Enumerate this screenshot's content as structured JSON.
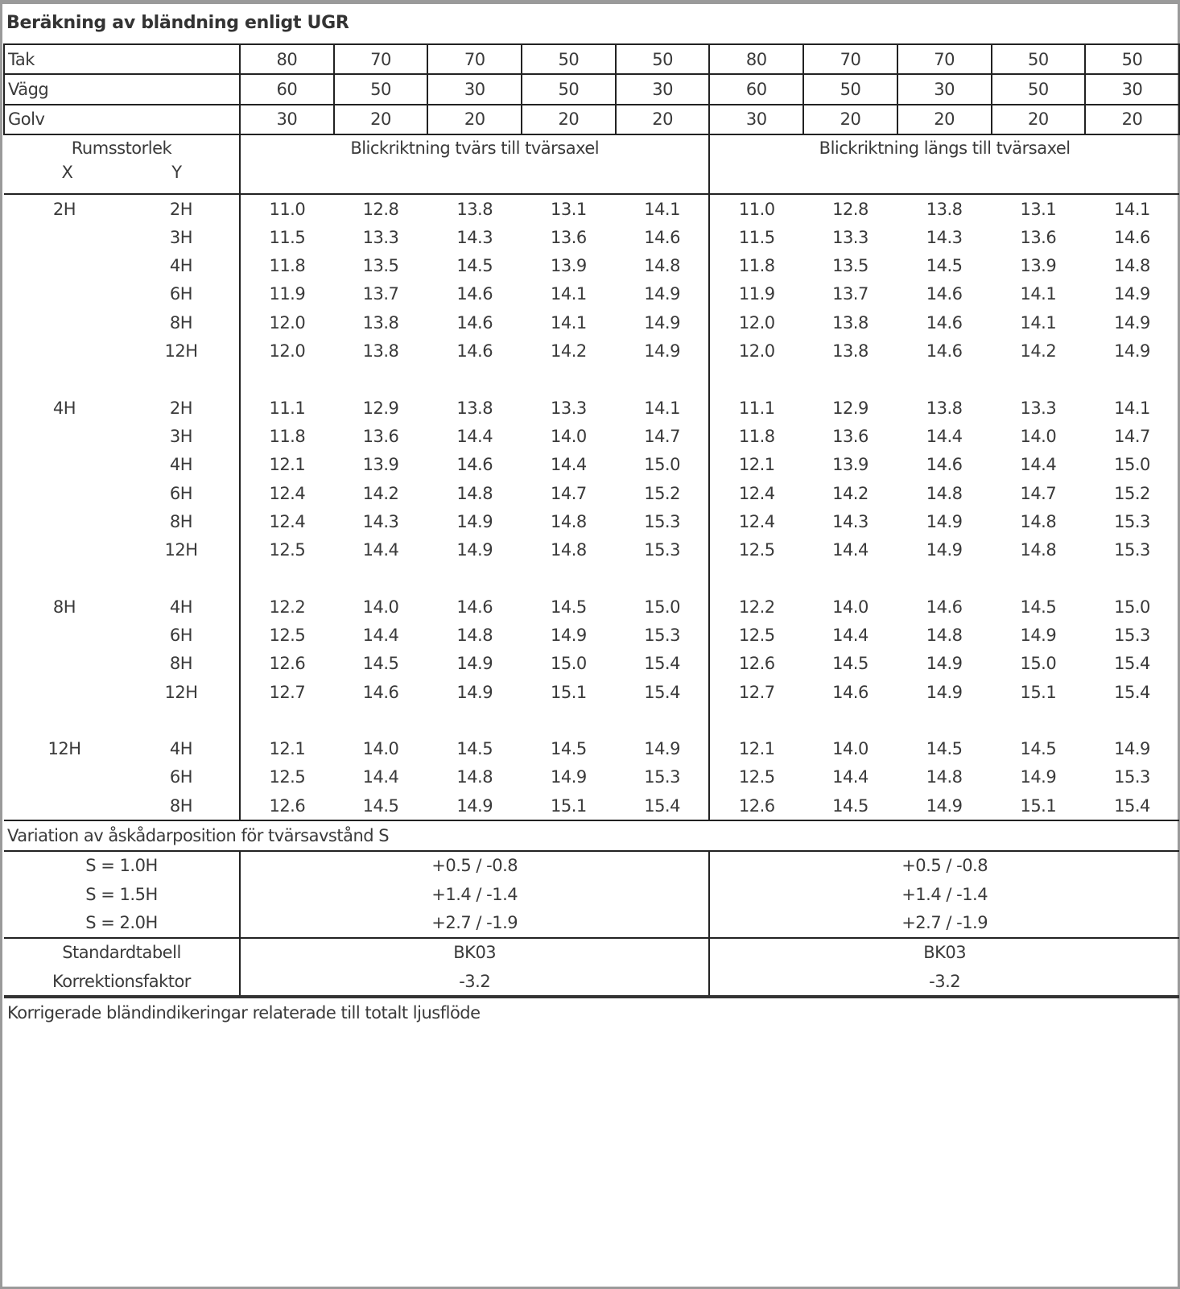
{
  "title": "Beräkning av bländning enligt UGR",
  "reflectances": [
    {
      "label": "Tak",
      "values": [
        "80",
        "70",
        "70",
        "50",
        "50",
        "80",
        "70",
        "70",
        "50",
        "50"
      ]
    },
    {
      "label": "Vägg",
      "values": [
        "60",
        "50",
        "30",
        "50",
        "30",
        "60",
        "50",
        "30",
        "50",
        "30"
      ]
    },
    {
      "label": "Golv",
      "values": [
        "30",
        "20",
        "20",
        "20",
        "20",
        "30",
        "20",
        "20",
        "20",
        "20"
      ]
    }
  ],
  "header": {
    "room_size": "Rumsstorlek",
    "x": "X",
    "y": "Y",
    "crosswise": "Blickriktning tvärs till tvärsaxel",
    "lengthwise": "Blickriktning längs till tvärsaxel"
  },
  "blocks": [
    {
      "x": "2H",
      "rows": [
        {
          "y": "2H",
          "values": [
            "11.0",
            "12.8",
            "13.8",
            "13.1",
            "14.1",
            "11.0",
            "12.8",
            "13.8",
            "13.1",
            "14.1"
          ]
        },
        {
          "y": "3H",
          "values": [
            "11.5",
            "13.3",
            "14.3",
            "13.6",
            "14.6",
            "11.5",
            "13.3",
            "14.3",
            "13.6",
            "14.6"
          ]
        },
        {
          "y": "4H",
          "values": [
            "11.8",
            "13.5",
            "14.5",
            "13.9",
            "14.8",
            "11.8",
            "13.5",
            "14.5",
            "13.9",
            "14.8"
          ]
        },
        {
          "y": "6H",
          "values": [
            "11.9",
            "13.7",
            "14.6",
            "14.1",
            "14.9",
            "11.9",
            "13.7",
            "14.6",
            "14.1",
            "14.9"
          ]
        },
        {
          "y": "8H",
          "values": [
            "12.0",
            "13.8",
            "14.6",
            "14.1",
            "14.9",
            "12.0",
            "13.8",
            "14.6",
            "14.1",
            "14.9"
          ]
        },
        {
          "y": "12H",
          "values": [
            "12.0",
            "13.8",
            "14.6",
            "14.2",
            "14.9",
            "12.0",
            "13.8",
            "14.6",
            "14.2",
            "14.9"
          ]
        }
      ]
    },
    {
      "x": "4H",
      "rows": [
        {
          "y": "2H",
          "values": [
            "11.1",
            "12.9",
            "13.8",
            "13.3",
            "14.1",
            "11.1",
            "12.9",
            "13.8",
            "13.3",
            "14.1"
          ]
        },
        {
          "y": "3H",
          "values": [
            "11.8",
            "13.6",
            "14.4",
            "14.0",
            "14.7",
            "11.8",
            "13.6",
            "14.4",
            "14.0",
            "14.7"
          ]
        },
        {
          "y": "4H",
          "values": [
            "12.1",
            "13.9",
            "14.6",
            "14.4",
            "15.0",
            "12.1",
            "13.9",
            "14.6",
            "14.4",
            "15.0"
          ]
        },
        {
          "y": "6H",
          "values": [
            "12.4",
            "14.2",
            "14.8",
            "14.7",
            "15.2",
            "12.4",
            "14.2",
            "14.8",
            "14.7",
            "15.2"
          ]
        },
        {
          "y": "8H",
          "values": [
            "12.4",
            "14.3",
            "14.9",
            "14.8",
            "15.3",
            "12.4",
            "14.3",
            "14.9",
            "14.8",
            "15.3"
          ]
        },
        {
          "y": "12H",
          "values": [
            "12.5",
            "14.4",
            "14.9",
            "14.8",
            "15.3",
            "12.5",
            "14.4",
            "14.9",
            "14.8",
            "15.3"
          ]
        }
      ]
    },
    {
      "x": "8H",
      "rows": [
        {
          "y": "4H",
          "values": [
            "12.2",
            "14.0",
            "14.6",
            "14.5",
            "15.0",
            "12.2",
            "14.0",
            "14.6",
            "14.5",
            "15.0"
          ]
        },
        {
          "y": "6H",
          "values": [
            "12.5",
            "14.4",
            "14.8",
            "14.9",
            "15.3",
            "12.5",
            "14.4",
            "14.8",
            "14.9",
            "15.3"
          ]
        },
        {
          "y": "8H",
          "values": [
            "12.6",
            "14.5",
            "14.9",
            "15.0",
            "15.4",
            "12.6",
            "14.5",
            "14.9",
            "15.0",
            "15.4"
          ]
        },
        {
          "y": "12H",
          "values": [
            "12.7",
            "14.6",
            "14.9",
            "15.1",
            "15.4",
            "12.7",
            "14.6",
            "14.9",
            "15.1",
            "15.4"
          ]
        }
      ]
    },
    {
      "x": "12H",
      "rows": [
        {
          "y": "4H",
          "values": [
            "12.1",
            "14.0",
            "14.5",
            "14.5",
            "14.9",
            "12.1",
            "14.0",
            "14.5",
            "14.5",
            "14.9"
          ]
        },
        {
          "y": "6H",
          "values": [
            "12.5",
            "14.4",
            "14.8",
            "14.9",
            "15.3",
            "12.5",
            "14.4",
            "14.8",
            "14.9",
            "15.3"
          ]
        },
        {
          "y": "8H",
          "values": [
            "12.6",
            "14.5",
            "14.9",
            "15.1",
            "15.4",
            "12.6",
            "14.5",
            "14.9",
            "15.1",
            "15.4"
          ]
        }
      ]
    }
  ],
  "variation": {
    "title": "Variation av åskådarposition för tvärsavstånd S",
    "rows": [
      {
        "label": "S = 1.0H",
        "crosswise": "+0.5 / -0.8",
        "lengthwise": "+0.5 / -0.8"
      },
      {
        "label": "S = 1.5H",
        "crosswise": "+1.4 / -1.4",
        "lengthwise": "+1.4 / -1.4"
      },
      {
        "label": "S = 2.0H",
        "crosswise": "+2.7 / -1.9",
        "lengthwise": "+2.7 / -1.9"
      }
    ]
  },
  "standard": {
    "rows": [
      {
        "label": "Standardtabell",
        "crosswise": "BK03",
        "lengthwise": "BK03"
      },
      {
        "label": "Korrektionsfaktor",
        "crosswise": "-3.2",
        "lengthwise": "-3.2"
      }
    ]
  },
  "footer": "Korrigerade bländindikeringar relaterade till totalt ljusflöde"
}
